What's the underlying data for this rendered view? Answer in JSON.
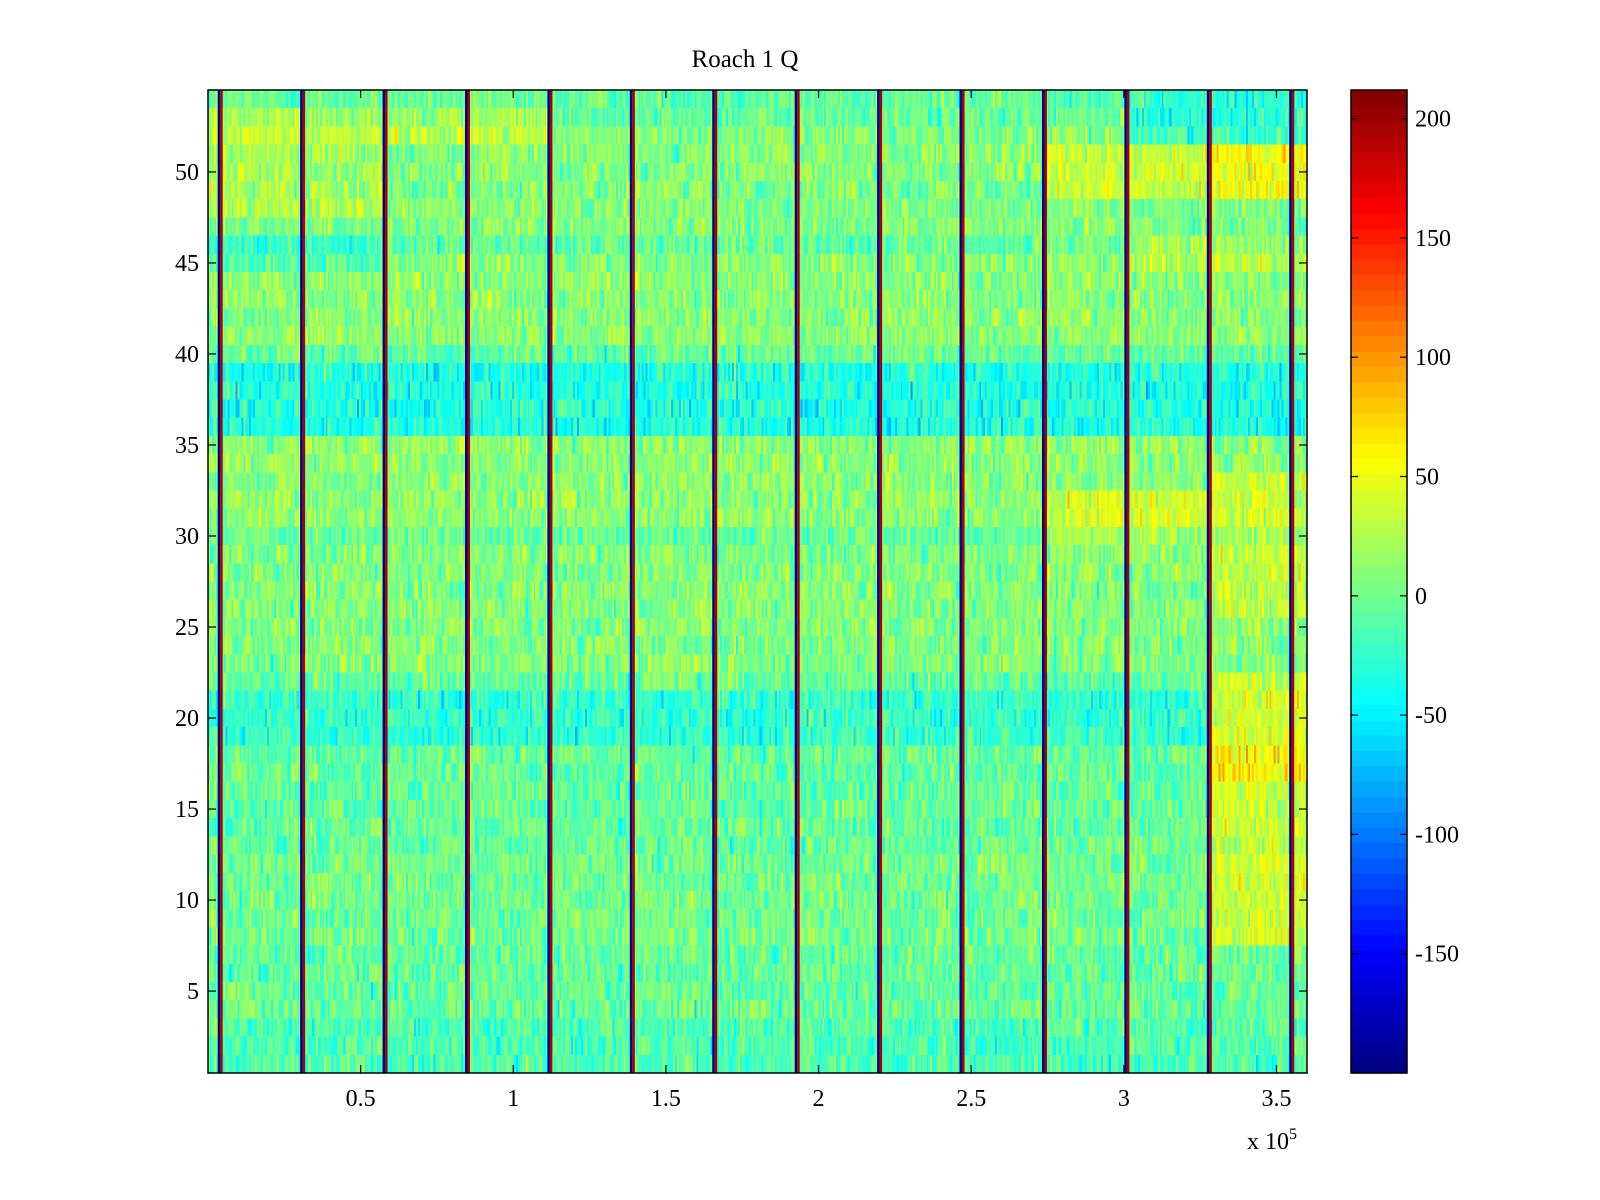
{
  "chart_data": {
    "type": "heatmap",
    "title": "Roach 1 Q",
    "xlabel": "",
    "ylabel": "",
    "x_multiplier_label": "x 10",
    "x_multiplier_exponent": "5",
    "xlim": [
      0,
      3.6
    ],
    "ylim": [
      0.5,
      54.5
    ],
    "x_ticks": [
      0.5,
      1,
      1.5,
      2,
      2.5,
      3,
      3.5
    ],
    "x_tick_labels": [
      "0.5",
      "1",
      "1.5",
      "2",
      "2.5",
      "3",
      "3.5"
    ],
    "y_ticks": [
      5,
      10,
      15,
      20,
      25,
      30,
      35,
      40,
      45,
      50
    ],
    "y_tick_labels": [
      "5",
      "10",
      "15",
      "20",
      "25",
      "30",
      "35",
      "40",
      "45",
      "50"
    ],
    "rows": 54,
    "colorbar": {
      "colormap": "jet",
      "clim": [
        -200,
        212
      ],
      "ticks": [
        -150,
        -100,
        -50,
        0,
        50,
        100,
        150,
        200
      ],
      "tick_labels": [
        "-150",
        "-100",
        "-50",
        "0",
        "50",
        "100",
        "150",
        "200"
      ]
    },
    "column_spikes": [
      0.04,
      0.31,
      0.58,
      0.85,
      1.12,
      1.39,
      1.66,
      1.93,
      2.2,
      2.47,
      2.74,
      3.01,
      3.28,
      3.55
    ],
    "base_level": -5,
    "row_offsets": [
      {
        "rows": [
          1,
          3
        ],
        "value": -8
      },
      {
        "rows": [
          8,
          12
        ],
        "value": 5
      },
      {
        "rows": [
          19,
          21
        ],
        "value": -20
      },
      {
        "rows": [
          23,
          29
        ],
        "value": 12
      },
      {
        "rows": [
          31,
          35
        ],
        "value": 15
      },
      {
        "rows": [
          36,
          39
        ],
        "value": -28
      },
      {
        "rows": [
          41,
          45
        ],
        "value": 15
      },
      {
        "rows": [
          47,
          52
        ],
        "value": 12
      }
    ],
    "regional_offsets": [
      {
        "x": [
          3.28,
          3.6
        ],
        "rows": [
          8,
          22
        ],
        "value": 40
      },
      {
        "x": [
          3.28,
          3.6
        ],
        "rows": [
          17,
          21
        ],
        "value": 25
      },
      {
        "x": [
          3.28,
          3.6
        ],
        "rows": [
          26,
          33
        ],
        "value": 25
      },
      {
        "x": [
          3.28,
          3.6
        ],
        "rows": [
          49,
          51
        ],
        "value": 45
      },
      {
        "x": [
          2.74,
          3.28
        ],
        "rows": [
          30,
          32
        ],
        "value": 30
      },
      {
        "x": [
          2.74,
          3.28
        ],
        "rows": [
          49,
          51
        ],
        "value": 30
      },
      {
        "x": [
          3.01,
          3.6
        ],
        "rows": [
          45,
          46
        ],
        "value": 20
      },
      {
        "x": [
          3.01,
          3.6
        ],
        "rows": [
          52,
          54
        ],
        "value": -25
      },
      {
        "x": [
          0,
          0.58
        ],
        "rows": [
          45,
          46
        ],
        "value": -20
      },
      {
        "x": [
          0,
          1.12
        ],
        "rows": [
          52,
          53
        ],
        "value": 25
      },
      {
        "x": [
          0,
          0.58
        ],
        "rows": [
          48,
          51
        ],
        "value": 15
      }
    ]
  }
}
